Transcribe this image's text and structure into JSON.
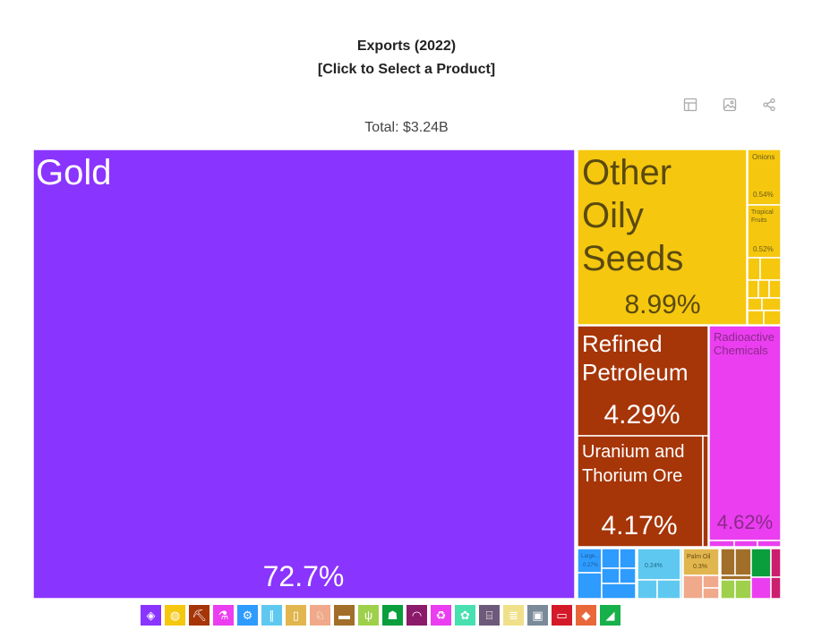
{
  "title_line1": "Exports (2022)",
  "title_line2": "[Click to Select a Product]",
  "total_label": "Total: $3.24B",
  "toolbar": [
    {
      "name": "table-view-icon",
      "icon": "table"
    },
    {
      "name": "image-download-icon",
      "icon": "image"
    },
    {
      "name": "share-icon",
      "icon": "share"
    }
  ],
  "colors": {
    "precious_metals": "#8a34ff",
    "vegetable": "#f5c70f",
    "mineral": "#a63508",
    "chemical": "#ea3ef0",
    "machines": "#2e9bff",
    "transport": "#5fc8f0",
    "foodstuff": "#e2b64e",
    "animal": "#f0a98a",
    "metals": "#a16f2a",
    "textiles": "#0a9e3c",
    "misc": "#cc1e6e"
  },
  "chart_data": {
    "type": "treemap",
    "title": "Exports (2022)",
    "subtitle": "[Click to Select a Product]",
    "total": "$3.24B",
    "tiles": [
      {
        "name": "Gold",
        "share": "72.7%",
        "category": "precious_metals"
      },
      {
        "name": "Other Oily Seeds",
        "share": "8.99%",
        "category": "vegetable"
      },
      {
        "name": "Onions",
        "share": "0.54%",
        "category": "vegetable"
      },
      {
        "name": "Tropical Fruits",
        "share": "0.52%",
        "category": "vegetable"
      },
      {
        "name": "Refined Petroleum",
        "share": "4.29%",
        "category": "mineral"
      },
      {
        "name": "Uranium and Thorium Ore",
        "share": "4.17%",
        "category": "mineral"
      },
      {
        "name": "Radioactive Chemicals",
        "share": "4.62%",
        "category": "chemical"
      },
      {
        "name": "Large...",
        "share": "0.27%",
        "category": "machines"
      },
      {
        "name": "",
        "share": "0.24%",
        "category": "transport"
      },
      {
        "name": "Palm Oil",
        "share": "0.3%",
        "category": "foodstuff"
      }
    ]
  },
  "legend": [
    {
      "name": "legend-precious-metals",
      "icon": "gem-icon",
      "glyph": "◈",
      "color": "#8a34ff"
    },
    {
      "name": "legend-vegetable",
      "icon": "fruit-icon",
      "glyph": "◍",
      "color": "#f5c70f"
    },
    {
      "name": "legend-mineral",
      "icon": "pickaxe-icon",
      "glyph": "⛏",
      "color": "#a63508"
    },
    {
      "name": "legend-chemical",
      "icon": "flask-icon",
      "glyph": "⚗",
      "color": "#ea3ef0"
    },
    {
      "name": "legend-machines",
      "icon": "gear-icon",
      "glyph": "⚙",
      "color": "#2e9bff"
    },
    {
      "name": "legend-transport",
      "icon": "road-icon",
      "glyph": "∥",
      "color": "#5fc8f0"
    },
    {
      "name": "legend-foodstuff",
      "icon": "bottle-icon",
      "glyph": "▯",
      "color": "#e2b64e"
    },
    {
      "name": "legend-animal-products",
      "icon": "animal-icon",
      "glyph": "♘",
      "color": "#f0a98a"
    },
    {
      "name": "legend-metals",
      "icon": "anvil-icon",
      "glyph": "▬",
      "color": "#a16f2a"
    },
    {
      "name": "legend-vegetable-products",
      "icon": "wheat-icon",
      "glyph": "ψ",
      "color": "#9fd04b"
    },
    {
      "name": "legend-textiles",
      "icon": "shirt-icon",
      "glyph": "☗",
      "color": "#0a9e3c"
    },
    {
      "name": "legend-instruments",
      "icon": "gauge-icon",
      "glyph": "◠",
      "color": "#8b1a6a"
    },
    {
      "name": "legend-plastics",
      "icon": "recycle-icon",
      "glyph": "♻",
      "color": "#ea3ef0"
    },
    {
      "name": "legend-animal-hides",
      "icon": "hide-icon",
      "glyph": "✿",
      "color": "#48e0b0"
    },
    {
      "name": "legend-wood-products",
      "icon": "easel-icon",
      "glyph": "⌸",
      "color": "#6d5a7a"
    },
    {
      "name": "legend-paper-goods",
      "icon": "paper-icon",
      "glyph": "≣",
      "color": "#f0e08a"
    },
    {
      "name": "legend-weapons",
      "icon": "box-icon",
      "glyph": "▣",
      "color": "#7a8a98"
    },
    {
      "name": "legend-miscellaneous",
      "icon": "ticket-icon",
      "glyph": "▭",
      "color": "#d41a2a"
    },
    {
      "name": "legend-stone-and-glass",
      "icon": "stone-icon",
      "glyph": "◆",
      "color": "#e8683a"
    },
    {
      "name": "legend-footwear",
      "icon": "shoe-icon",
      "glyph": "◢",
      "color": "#18b04a"
    }
  ]
}
